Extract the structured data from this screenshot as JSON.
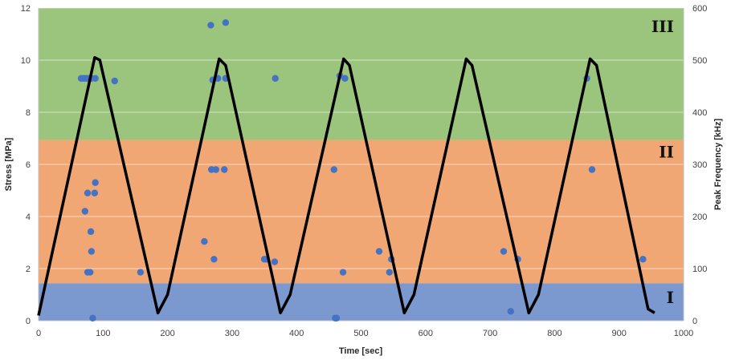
{
  "chart_data": {
    "type": "scatter",
    "xlabel": "Time [sec]",
    "ylabel": "Stress [MPa]",
    "y2label": "Peak Frequency [kHz]",
    "xlim": [
      0,
      1000
    ],
    "ylim": [
      0,
      12
    ],
    "y2lim": [
      0,
      600
    ],
    "x_ticks": [
      "0",
      "100",
      "200",
      "300",
      "400",
      "500",
      "600",
      "700",
      "800",
      "900",
      "1000"
    ],
    "y_ticks": [
      "0",
      "2",
      "4",
      "6",
      "8",
      "10",
      "12"
    ],
    "y2_ticks": [
      "0",
      "100",
      "200",
      "300",
      "400",
      "500",
      "600"
    ],
    "regions": [
      {
        "label": "I",
        "y2_from": 0,
        "y2_to": 72,
        "color": "#7b98cf"
      },
      {
        "label": "II",
        "y2_from": 72,
        "y2_to": 347,
        "color": "#f0a774"
      },
      {
        "label": "III",
        "y2_from": 347,
        "y2_to": 600,
        "color": "#9bc57c"
      }
    ],
    "stress_series": {
      "color": "#000000",
      "points": [
        [
          0,
          0.2
        ],
        [
          87,
          10.1
        ],
        [
          95,
          10.0
        ],
        [
          185,
          0.3
        ],
        [
          200,
          1.0
        ],
        [
          280,
          10.05
        ],
        [
          290,
          9.8
        ],
        [
          375,
          0.3
        ],
        [
          390,
          1.0
        ],
        [
          473,
          10.05
        ],
        [
          482,
          9.8
        ],
        [
          567,
          0.3
        ],
        [
          582,
          1.0
        ],
        [
          663,
          10.05
        ],
        [
          672,
          9.8
        ],
        [
          760,
          0.3
        ],
        [
          775,
          1.0
        ],
        [
          855,
          10.05
        ],
        [
          865,
          9.8
        ],
        [
          945,
          0.45
        ],
        [
          955,
          0.3
        ]
      ]
    },
    "frequency_series": {
      "color": "#4472c4",
      "points": [
        [
          66,
          465
        ],
        [
          70,
          465
        ],
        [
          74,
          465
        ],
        [
          78,
          465
        ],
        [
          82,
          465
        ],
        [
          88,
          465
        ],
        [
          118,
          460
        ],
        [
          72,
          210
        ],
        [
          76,
          245
        ],
        [
          76,
          93
        ],
        [
          80,
          93
        ],
        [
          81,
          171
        ],
        [
          82,
          133
        ],
        [
          84,
          5
        ],
        [
          87,
          245
        ],
        [
          88,
          265
        ],
        [
          158,
          93
        ],
        [
          257,
          152
        ],
        [
          267,
          567
        ],
        [
          268,
          290
        ],
        [
          270,
          462
        ],
        [
          272,
          118
        ],
        [
          275,
          290
        ],
        [
          278,
          465
        ],
        [
          288,
          290
        ],
        [
          290,
          572
        ],
        [
          290,
          465
        ],
        [
          350,
          118
        ],
        [
          353,
          118
        ],
        [
          366,
          113
        ],
        [
          367,
          465
        ],
        [
          458,
          290
        ],
        [
          460,
          5
        ],
        [
          462,
          5
        ],
        [
          467,
          470
        ],
        [
          472,
          93
        ],
        [
          475,
          465
        ],
        [
          528,
          133
        ],
        [
          544,
          93
        ],
        [
          547,
          118
        ],
        [
          721,
          133
        ],
        [
          732,
          18
        ],
        [
          743,
          118
        ],
        [
          850,
          465
        ],
        [
          858,
          290
        ],
        [
          937,
          118
        ]
      ]
    }
  }
}
